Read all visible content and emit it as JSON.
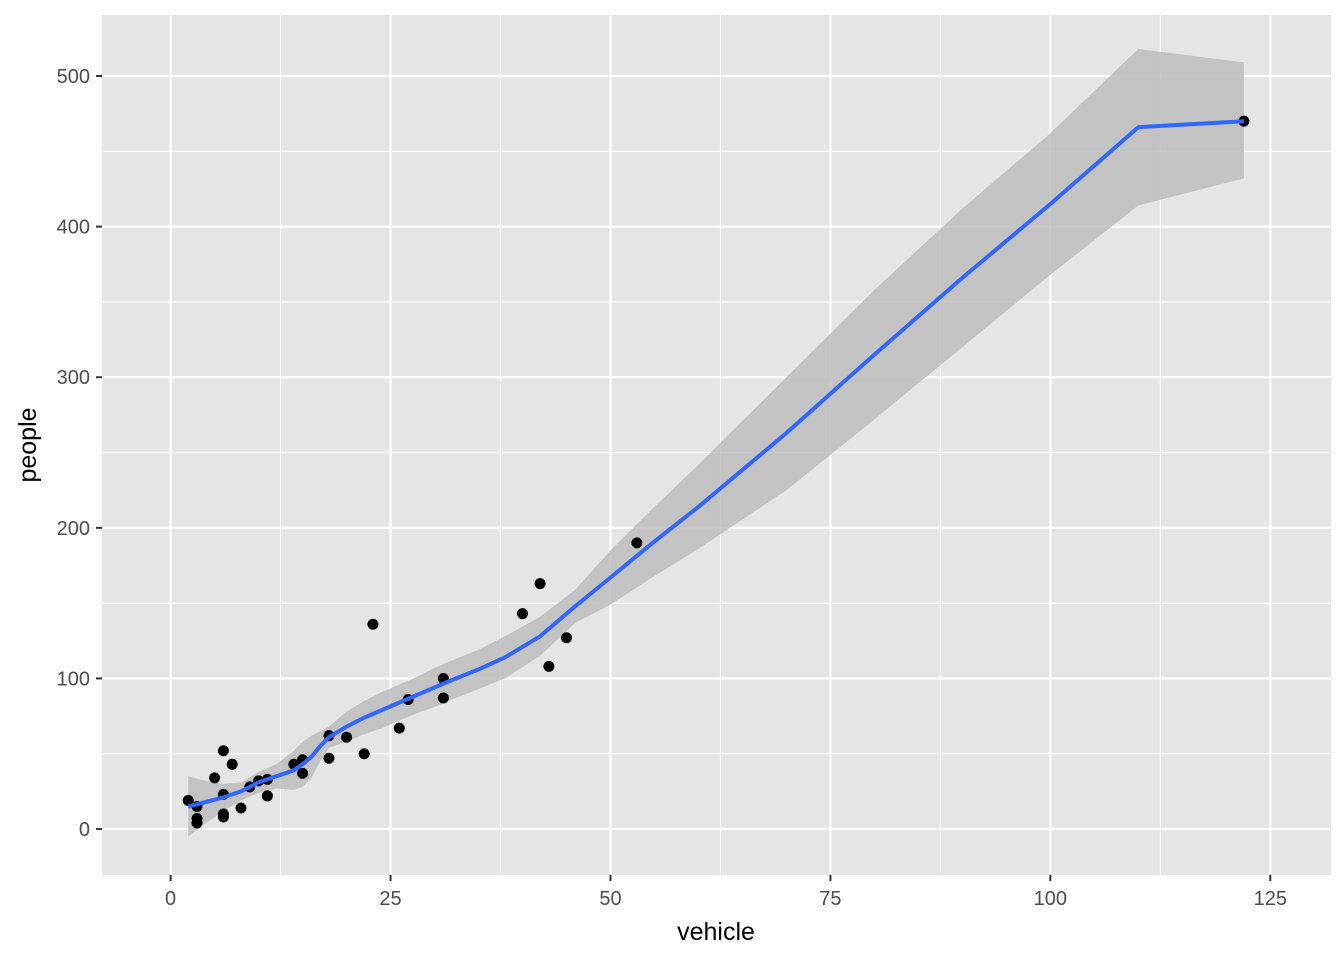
{
  "chart_data": {
    "type": "scatter",
    "title": "",
    "xlabel": "vehicle",
    "ylabel": "people",
    "xlim": [
      -7.8,
      131.9
    ],
    "ylim": [
      -30.5,
      540.5
    ],
    "x_ticks": [
      0,
      25,
      50,
      75,
      100,
      125
    ],
    "x_tick_labels": [
      "0",
      "25",
      "50",
      "75",
      "100",
      "125"
    ],
    "y_ticks": [
      0,
      100,
      200,
      300,
      400,
      500
    ],
    "y_tick_labels": [
      "0",
      "100",
      "200",
      "300",
      "400",
      "500"
    ],
    "grid": true,
    "legend": "none",
    "colors": {
      "panel_background": "#e5e5e5",
      "grid": "#ffffff",
      "points": "#000000",
      "smooth_line": "#3366ff",
      "ribbon": "#bdbdbd"
    },
    "points": [
      {
        "x": 2,
        "y": 19
      },
      {
        "x": 3,
        "y": 15
      },
      {
        "x": 3,
        "y": 7
      },
      {
        "x": 3,
        "y": 4
      },
      {
        "x": 5,
        "y": 34
      },
      {
        "x": 6,
        "y": 52
      },
      {
        "x": 6,
        "y": 23
      },
      {
        "x": 6,
        "y": 10
      },
      {
        "x": 6,
        "y": 8
      },
      {
        "x": 7,
        "y": 43
      },
      {
        "x": 8,
        "y": 14
      },
      {
        "x": 9,
        "y": 28
      },
      {
        "x": 10,
        "y": 32
      },
      {
        "x": 11,
        "y": 33
      },
      {
        "x": 11,
        "y": 22
      },
      {
        "x": 14,
        "y": 43
      },
      {
        "x": 15,
        "y": 46
      },
      {
        "x": 15,
        "y": 37
      },
      {
        "x": 18,
        "y": 62
      },
      {
        "x": 18,
        "y": 47
      },
      {
        "x": 20,
        "y": 61
      },
      {
        "x": 22,
        "y": 50
      },
      {
        "x": 23,
        "y": 136
      },
      {
        "x": 26,
        "y": 67
      },
      {
        "x": 27,
        "y": 86
      },
      {
        "x": 31,
        "y": 100
      },
      {
        "x": 31,
        "y": 87
      },
      {
        "x": 40,
        "y": 143
      },
      {
        "x": 42,
        "y": 163
      },
      {
        "x": 43,
        "y": 108
      },
      {
        "x": 45,
        "y": 127
      },
      {
        "x": 53,
        "y": 190
      },
      {
        "x": 122,
        "y": 470
      }
    ],
    "smooth": {
      "x": [
        2,
        4,
        6,
        8,
        10,
        12,
        14,
        15,
        16,
        17,
        18,
        20,
        22,
        24,
        26,
        28,
        30,
        32,
        35,
        38,
        42,
        46,
        50,
        55,
        60,
        70,
        80,
        90,
        100,
        110,
        122
      ],
      "y": [
        15,
        18,
        21,
        25,
        31,
        35,
        39,
        43,
        48,
        55,
        61,
        68,
        74,
        79,
        84,
        89,
        94,
        99,
        106,
        114,
        128,
        148,
        167,
        191,
        214,
        263,
        315,
        366,
        415,
        466,
        470
      ],
      "lower": [
        -5,
        4,
        12,
        19,
        24,
        27,
        26,
        28,
        34,
        45,
        54,
        58,
        63,
        67,
        72,
        77,
        81,
        86,
        93,
        100,
        115,
        137,
        149,
        168,
        186,
        225,
        272,
        320,
        368,
        414,
        432
      ],
      "upper": [
        35,
        32,
        30,
        31,
        38,
        43,
        52,
        58,
        62,
        65,
        68,
        78,
        85,
        91,
        96,
        101,
        107,
        112,
        119,
        128,
        141,
        159,
        185,
        214,
        242,
        300,
        358,
        412,
        462,
        518,
        509
      ]
    }
  }
}
